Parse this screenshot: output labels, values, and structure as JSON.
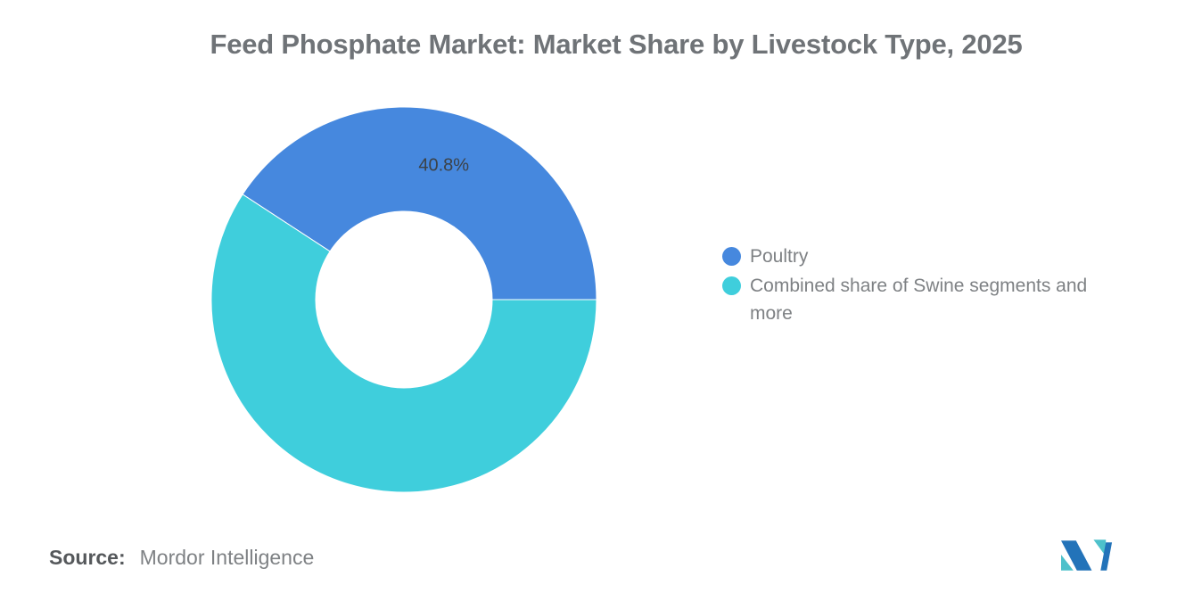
{
  "header": {
    "title": "Feed Phosphate Market: Market Share by Livestock Type, 2025"
  },
  "chart_data": {
    "type": "pie",
    "donut": true,
    "title": "Feed Phosphate Market: Market Share by Livestock Type, 2025",
    "slices": [
      {
        "label": "Poultry",
        "value": 40.8,
        "color": "#4688DE",
        "data_label": "40.8%"
      },
      {
        "label": "Combined share of Swine segments and more",
        "value": 59.2,
        "color": "#3FCEDC",
        "data_label": ""
      }
    ],
    "legend_position": "right",
    "data_label_color": "#3C4247",
    "layout": {
      "first_slice_end_angle_deg": 90,
      "slice_border_color": "#ffffff",
      "slice_border_width": 1
    }
  },
  "footer": {
    "source_label": "Source:",
    "source_value": "Mordor Intelligence"
  },
  "logo": {
    "name": "mordor-intelligence-logo",
    "colors": {
      "blue": "#2373B9",
      "teal": "#4EC1CB"
    }
  }
}
